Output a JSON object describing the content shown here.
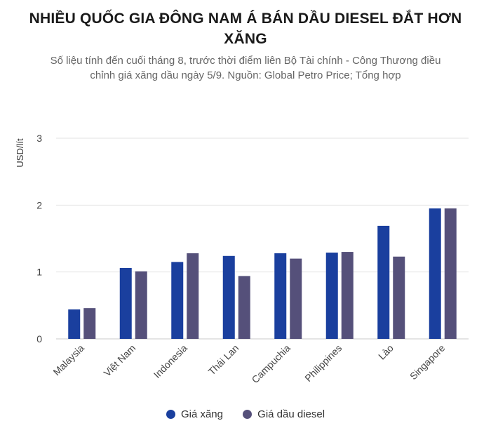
{
  "title": "NHIỀU QUỐC GIA ĐÔNG NAM Á BÁN DẦU DIESEL ĐẮT HƠN XĂNG",
  "subtitle": "Số liệu tính đến cuối tháng 8, trước thời điểm liên Bộ Tài chính - Công Thương điều chỉnh giá xăng dầu ngày 5/9. Nguồn: Global Petro Price; Tổng hợp",
  "colors": {
    "gasoline": "#1a3f9e",
    "diesel": "#55507a",
    "grid": "#e3e3e3",
    "axis": "#c8c8c8"
  },
  "chart_data": {
    "type": "bar",
    "ylabel": "USD/lít",
    "ylim": [
      0,
      3
    ],
    "yticks": [
      0,
      1,
      2,
      3
    ],
    "grid": true,
    "legend_position": "bottom",
    "categories": [
      "Malaysia",
      "Việt Nam",
      "Indonesia",
      "Thái Lan",
      "Campuchia",
      "Philippines",
      "Lào",
      "Singapore"
    ],
    "series": [
      {
        "name": "Giá xăng",
        "color": "#1a3f9e",
        "values": [
          0.44,
          1.06,
          1.15,
          1.24,
          1.28,
          1.29,
          1.69,
          1.95
        ]
      },
      {
        "name": "Giá dầu diesel",
        "color": "#55507a",
        "values": [
          0.46,
          1.01,
          1.28,
          0.94,
          1.2,
          1.3,
          1.23,
          1.95
        ]
      }
    ]
  }
}
